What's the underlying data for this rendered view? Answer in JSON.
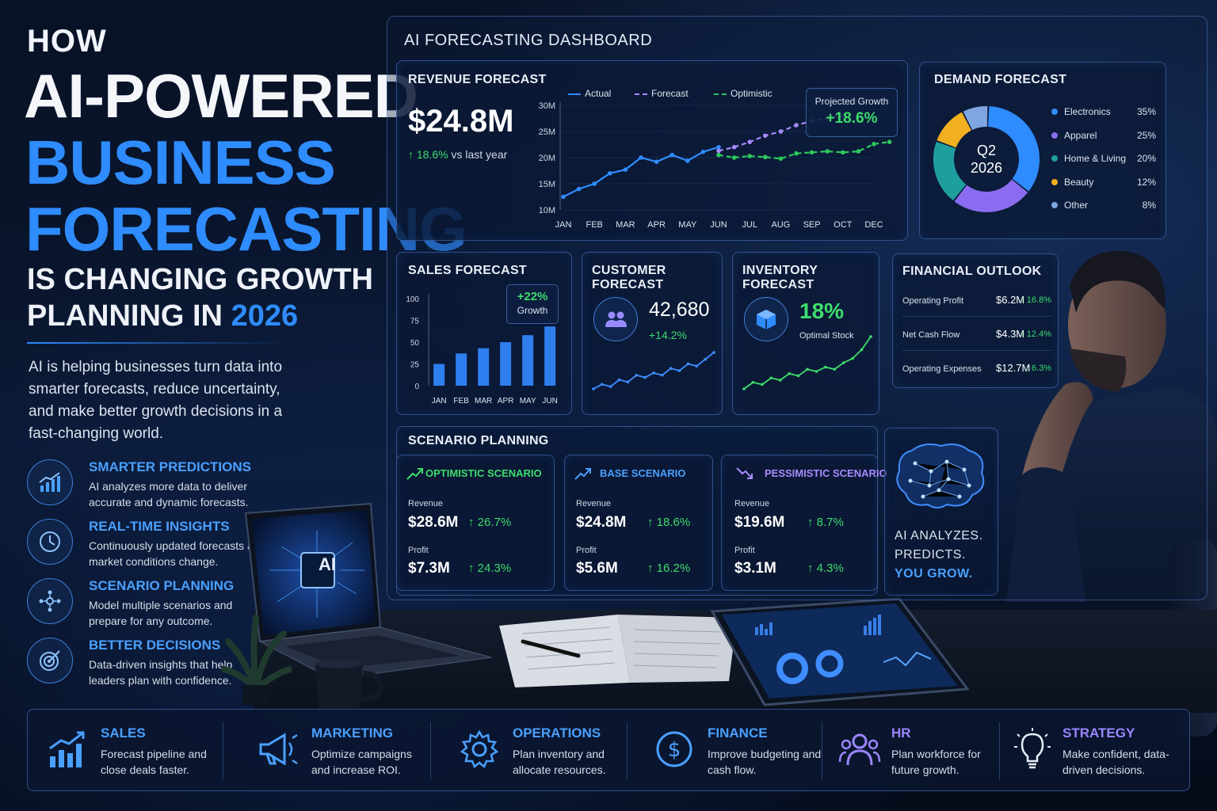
{
  "hero": {
    "how": "HOW",
    "line1": "AI-POWERED",
    "line2": "BUSINESS",
    "line3": "FORECASTING",
    "line4": "IS CHANGING GROWTH",
    "line5_prefix": "PLANNING IN ",
    "line5_year": "2026",
    "description": "AI is helping businesses turn data into smarter forecasts, reduce uncertainty, and make better growth decisions in a fast-changing world."
  },
  "features": [
    {
      "title": "SMARTER PREDICTIONS",
      "desc": "AI analyzes more data to deliver accurate and dynamic forecasts.",
      "icon": "bar-growth-icon"
    },
    {
      "title": "REAL-TIME INSIGHTS",
      "desc": "Continuously updated forecasts as market conditions change.",
      "icon": "clock-icon"
    },
    {
      "title": "SCENARIO PLANNING",
      "desc": "Model multiple scenarios and prepare for any outcome.",
      "icon": "network-icon"
    },
    {
      "title": "BETTER DECISIONS",
      "desc": "Data-driven insights that help leaders plan with confidence.",
      "icon": "target-icon"
    }
  ],
  "dashboard": {
    "title": "AI FORECASTING DASHBOARD",
    "revenue": {
      "title": "REVENUE FORECAST",
      "value": "$24.8M",
      "change": "↑ 18.6%",
      "change_suffix": " vs last year",
      "projected_label": "Projected Growth",
      "projected_value": "+18.6%",
      "legend": [
        "Actual",
        "Forecast",
        "Optimistic"
      ]
    },
    "demand": {
      "title": "DEMAND FORECAST",
      "center_line1": "Q2",
      "center_line2": "2026"
    },
    "sales": {
      "title": "SALES FORECAST",
      "badge_value": "+22%",
      "badge_label": "Growth"
    },
    "customer": {
      "title": "CUSTOMER FORECAST",
      "value": "42,680",
      "change": "+14.2%",
      "icon": "users-icon"
    },
    "inventory": {
      "title": "INVENTORY FORECAST",
      "value": "18%",
      "label": "Optimal Stock",
      "icon": "cube-icon"
    },
    "financial": {
      "title": "FINANCIAL OUTLOOK",
      "rows": [
        {
          "label": "Operating Profit",
          "value": "$6.2M",
          "change": "↑ 16.8%"
        },
        {
          "label": "Net Cash Flow",
          "value": "$4.3M",
          "change": "↑ 12.4%"
        },
        {
          "label": "Operating Expenses",
          "value": "$12.7M",
          "change": "↓ 6.3%"
        }
      ]
    },
    "scenario": {
      "title": "SCENARIO PLANNING",
      "items": [
        {
          "name": "OPTIMISTIC SCENARIO",
          "color": "#3ddc6c",
          "revenue_label": "Revenue",
          "revenue": "$28.6M",
          "revenue_change": "↑ 26.7%",
          "profit_label": "Profit",
          "profit": "$7.3M",
          "profit_change": "↑ 24.3%"
        },
        {
          "name": "BASE SCENARIO",
          "color": "#4aa0ff",
          "revenue_label": "Revenue",
          "revenue": "$24.8M",
          "revenue_change": "↑ 18.6%",
          "profit_label": "Profit",
          "profit": "$5.6M",
          "profit_change": "↑ 16.2%"
        },
        {
          "name": "PESSIMISTIC SCENARIO",
          "color": "#a98bff",
          "revenue_label": "Revenue",
          "revenue": "$19.6M",
          "revenue_change": "↑ 8.7%",
          "profit_label": "Profit",
          "profit": "$3.1M",
          "profit_change": "↑ 4.3%"
        }
      ]
    },
    "ai_tagline": {
      "l1": "AI ANALYZES.",
      "l2": "PREDICTS.",
      "l3": "YOU GROW."
    }
  },
  "laptop_label": "AI",
  "departments": [
    {
      "title": "SALES",
      "desc": "Forecast pipeline and close deals faster.",
      "icon": "bar-growth-icon",
      "color": "#4aa0ff"
    },
    {
      "title": "MARKETING",
      "desc": "Optimize campaigns and increase ROI.",
      "icon": "megaphone-icon",
      "color": "#4aa0ff"
    },
    {
      "title": "OPERATIONS",
      "desc": "Plan inventory and allocate resources.",
      "icon": "gear-icon",
      "color": "#4aa0ff"
    },
    {
      "title": "FINANCE",
      "desc": "Improve budgeting and cash flow.",
      "icon": "dollar-icon",
      "color": "#4aa0ff"
    },
    {
      "title": "HR",
      "desc": "Plan workforce for future growth.",
      "icon": "people-icon",
      "color": "#9b86ff"
    },
    {
      "title": "STRATEGY",
      "desc": "Make confident, data-driven decisions.",
      "icon": "lightbulb-icon",
      "color": "#9b86ff"
    }
  ],
  "chart_data": [
    {
      "type": "line",
      "title": "REVENUE FORECAST",
      "categories": [
        "JAN",
        "FEB",
        "MAR",
        "APR",
        "MAY",
        "JUN",
        "JUL",
        "AUG",
        "SEP",
        "OCT",
        "DEC"
      ],
      "y_ticks": [
        "30M",
        "25M",
        "20M",
        "15M",
        "10M"
      ],
      "ylim": [
        10,
        30
      ],
      "series": [
        {
          "name": "Actual",
          "style": "solid",
          "color": "#2f8cff",
          "x": [
            0,
            0.5,
            1,
            1.5,
            2,
            2.5,
            3,
            3.5,
            4,
            4.5,
            5
          ],
          "values": [
            12.5,
            14,
            15,
            17,
            17.7,
            20,
            19.2,
            20.5,
            19.4,
            21.1,
            22
          ]
        },
        {
          "name": "Forecast",
          "style": "dashed",
          "color": "#a78bff",
          "x": [
            5,
            5.5,
            6,
            6.5,
            7,
            7.5,
            8,
            8.5,
            9
          ],
          "values": [
            21.3,
            22,
            23,
            24.2,
            25,
            26.2,
            27,
            27.5,
            28
          ]
        },
        {
          "name": "Optimistic",
          "style": "dashed",
          "color": "#2ec95c",
          "x": [
            5,
            5.5,
            6,
            6.5,
            7,
            7.5,
            8,
            8.5,
            9,
            9.5,
            10,
            10.5
          ],
          "values": [
            20.5,
            20,
            20.3,
            20.1,
            19.8,
            20.8,
            21,
            21.2,
            21,
            21.2,
            22.6,
            23
          ]
        }
      ]
    },
    {
      "type": "pie",
      "title": "DEMAND FORECAST",
      "slices": [
        {
          "label": "Electronics",
          "value": 35,
          "color": "#2f8cff"
        },
        {
          "label": "Apparel",
          "value": 25,
          "color": "#8a6cf0"
        },
        {
          "label": "Home & Living",
          "value": 20,
          "color": "#1f9ea0"
        },
        {
          "label": "Beauty",
          "value": 12,
          "color": "#f0b020"
        },
        {
          "label": "Other",
          "value": 8,
          "color": "#7fa6e0"
        }
      ]
    },
    {
      "type": "bar",
      "title": "SALES FORECAST",
      "categories": [
        "JAN",
        "FEB",
        "MAR",
        "APR",
        "MAY",
        "JUN"
      ],
      "values": [
        25,
        37,
        43,
        50,
        58,
        68
      ],
      "y_ticks": [
        "100",
        "75",
        "50",
        "25",
        "0"
      ],
      "ylim": [
        0,
        100
      ]
    },
    {
      "type": "line",
      "title": "CUSTOMER FORECAST",
      "x": [
        0,
        1,
        2,
        3,
        4,
        5,
        6,
        7,
        8,
        9,
        10,
        11,
        12,
        13,
        14
      ],
      "values": [
        2,
        4,
        3,
        6,
        5,
        8,
        7,
        9,
        8,
        11,
        10,
        13,
        12,
        15,
        18
      ]
    },
    {
      "type": "line",
      "title": "INVENTORY FORECAST",
      "x": [
        0,
        1,
        2,
        3,
        4,
        5,
        6,
        7,
        8,
        9,
        10,
        11,
        12,
        13,
        14
      ],
      "values": [
        2,
        5,
        4,
        7,
        6,
        9,
        8,
        11,
        10,
        12,
        11,
        14,
        16,
        20,
        26
      ]
    }
  ]
}
